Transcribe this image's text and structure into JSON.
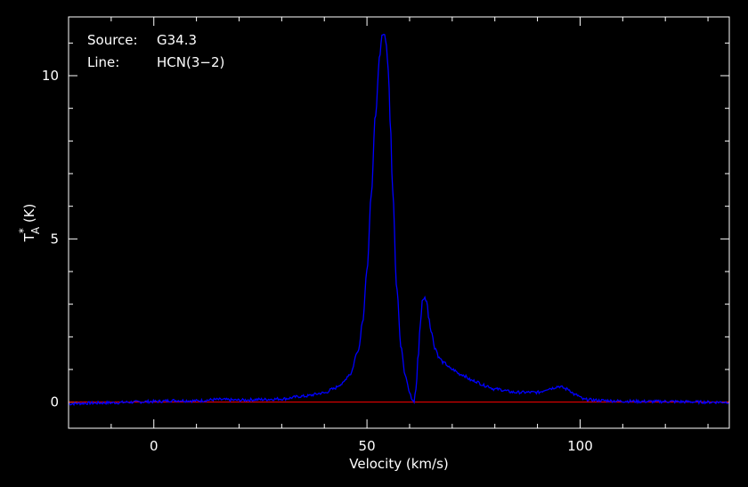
{
  "chart_data": {
    "type": "line",
    "title": "",
    "annotations": {
      "source_label": "Source:",
      "source_value": "G34.3",
      "line_label": "Line:",
      "line_value": "HCN(3−2)"
    },
    "xlabel": "Velocity (km/s)",
    "ylabel": {
      "base": "T",
      "sup": "*",
      "sub": "A",
      "unit": " (K)"
    },
    "xlim": [
      -20,
      135
    ],
    "ylim": [
      -0.8,
      11.8
    ],
    "xticks": [
      0,
      50,
      100
    ],
    "yticks": [
      0,
      5,
      10
    ],
    "grid": false,
    "colors": {
      "spectrum": "#0000ff",
      "baseline": "#ff0000",
      "axes": "#ffffff",
      "background": "#000000"
    },
    "baseline_y": 0,
    "series": [
      {
        "x": [
          -20,
          -15,
          -10,
          -5,
          0,
          5,
          10,
          15,
          20,
          25,
          30,
          35,
          40,
          42,
          44,
          46,
          48,
          49,
          50,
          51,
          52,
          53,
          53.5,
          54,
          54.5,
          55,
          55.5,
          56,
          57,
          58,
          59,
          60,
          60.5,
          61,
          61.5,
          62,
          62.5,
          63,
          63.5,
          64,
          64.5,
          65,
          66,
          67,
          68,
          70,
          72,
          75,
          78,
          80,
          85,
          90,
          93,
          95,
          97,
          99,
          101,
          105,
          110,
          115,
          120,
          125,
          130,
          135
        ],
        "y": [
          -0.05,
          -0.03,
          -0.02,
          0.0,
          0.02,
          0.05,
          0.04,
          0.08,
          0.06,
          0.08,
          0.1,
          0.18,
          0.28,
          0.4,
          0.55,
          0.85,
          1.6,
          2.5,
          4.0,
          6.3,
          8.8,
          10.6,
          11.2,
          11.3,
          11.0,
          10.2,
          8.5,
          6.5,
          3.5,
          1.7,
          0.8,
          0.3,
          0.1,
          0.0,
          0.4,
          1.4,
          2.4,
          3.1,
          3.2,
          3.1,
          2.6,
          2.2,
          1.65,
          1.35,
          1.2,
          1.0,
          0.85,
          0.65,
          0.5,
          0.4,
          0.3,
          0.3,
          0.42,
          0.48,
          0.4,
          0.22,
          0.08,
          0.05,
          0.03,
          0.02,
          0.02,
          0.01,
          0.0,
          0.0
        ]
      }
    ]
  }
}
